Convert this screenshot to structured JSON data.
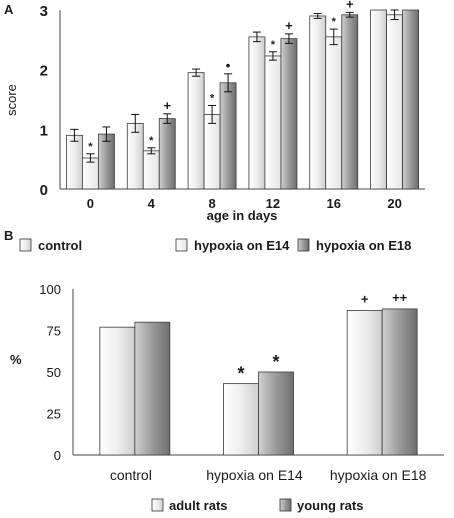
{
  "chart_data": [
    {
      "panel_label": "A",
      "type": "bar",
      "categories": [
        "0",
        "4",
        "8",
        "12",
        "16",
        "20"
      ],
      "xlabel": "age in days",
      "ylabel": "score",
      "ylim": [
        0,
        3
      ],
      "yticks": [
        "0",
        "1",
        "2",
        "3"
      ],
      "grid": false,
      "legend_position": "below",
      "legend": [
        "control",
        "hypoxia on E14",
        "hypoxia on E18"
      ],
      "series": [
        {
          "name": "control",
          "color": "#ececec",
          "values": [
            0.9,
            1.1,
            1.95,
            2.55,
            2.9,
            3.0
          ],
          "errors": [
            0.1,
            0.15,
            0.06,
            0.08,
            0.04,
            0.0
          ],
          "marks": [
            "",
            "",
            "",
            "",
            "",
            ""
          ]
        },
        {
          "name": "hypoxia on E14",
          "color": "#ffffff",
          "values": [
            0.52,
            0.64,
            1.25,
            2.23,
            2.55,
            2.92
          ],
          "errors": [
            0.07,
            0.05,
            0.15,
            0.07,
            0.13,
            0.08
          ],
          "marks": [
            "*",
            "*",
            "*",
            "*",
            "*",
            ""
          ]
        },
        {
          "name": "hypoxia on E18",
          "color": "#9a9a9a",
          "values": [
            0.92,
            1.18,
            1.78,
            2.52,
            2.92,
            3.0
          ],
          "errors": [
            0.12,
            0.08,
            0.15,
            0.08,
            0.04,
            0.0
          ],
          "marks": [
            "",
            "+",
            "•",
            "+",
            "+",
            ""
          ]
        }
      ]
    },
    {
      "panel_label": "B",
      "type": "bar",
      "categories": [
        "control",
        "hypoxia on E14",
        "hypoxia on E18"
      ],
      "xlabel": "",
      "ylabel": "%",
      "ylim": [
        0,
        100
      ],
      "yticks": [
        "0",
        "25",
        "50",
        "75",
        "100"
      ],
      "grid": false,
      "legend_position": "bottom",
      "series": [
        {
          "name": "adult rats",
          "color": "#f3f3f3",
          "values": [
            77,
            43,
            87
          ],
          "marks": [
            "",
            "*",
            "+"
          ]
        },
        {
          "name": "young rats",
          "color": "#9a9a9a",
          "values": [
            80,
            50,
            88
          ],
          "marks": [
            "",
            "*",
            "++"
          ]
        }
      ]
    }
  ]
}
